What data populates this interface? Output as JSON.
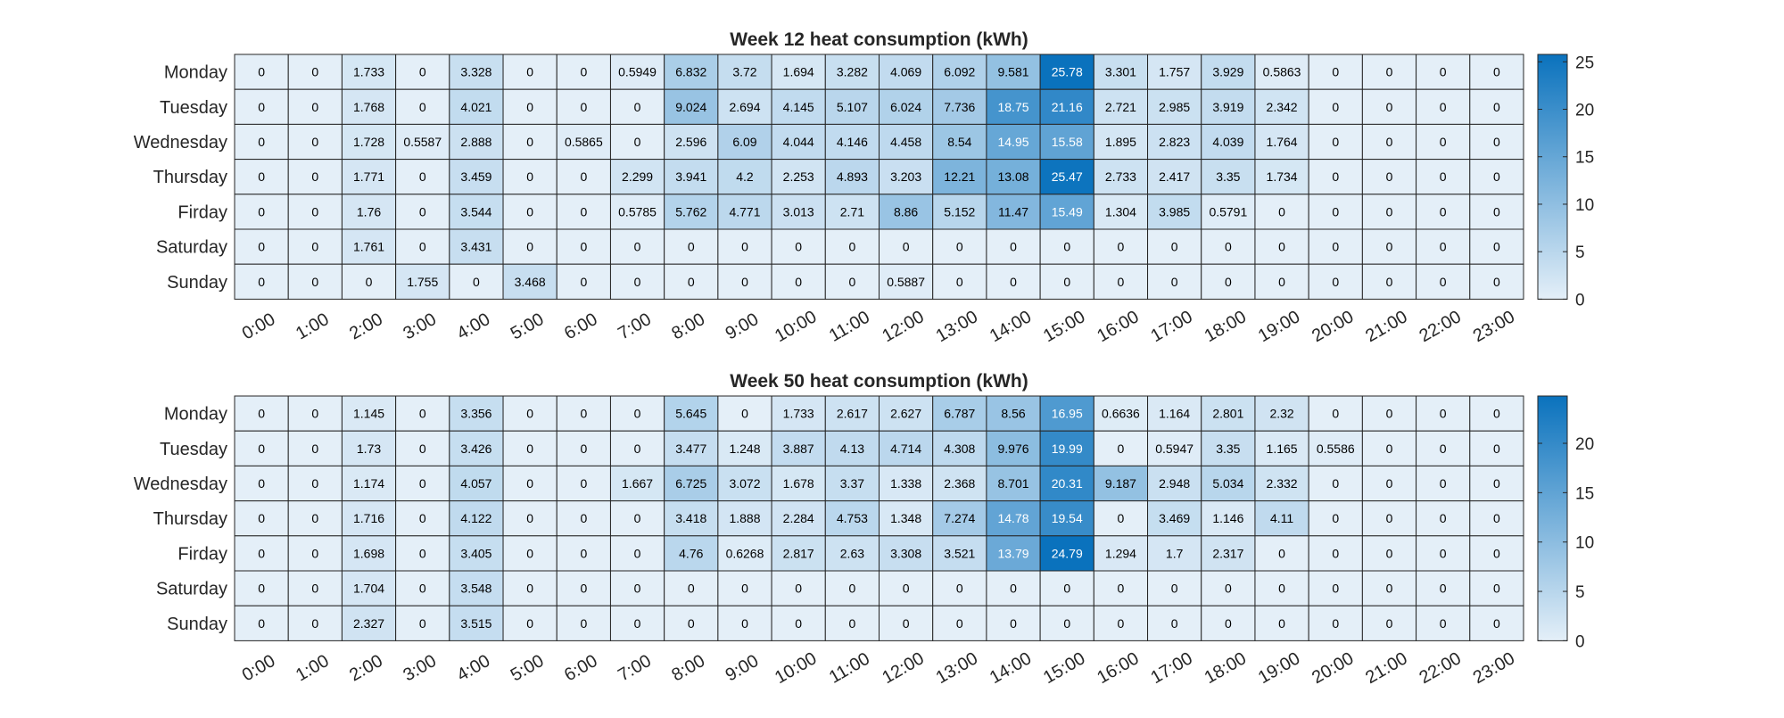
{
  "chart_data": [
    {
      "type": "heatmap",
      "title": "Week 12 heat consumption (kWh)",
      "rows": [
        "Monday",
        "Tuesday",
        "Wednesday",
        "Thursday",
        "Firday",
        "Saturday",
        "Sunday"
      ],
      "columns": [
        "0:00",
        "1:00",
        "2:00",
        "3:00",
        "4:00",
        "5:00",
        "6:00",
        "7:00",
        "8:00",
        "9:00",
        "10:00",
        "11:00",
        "12:00",
        "13:00",
        "14:00",
        "15:00",
        "16:00",
        "17:00",
        "18:00",
        "19:00",
        "20:00",
        "21:00",
        "22:00",
        "23:00"
      ],
      "values": [
        [
          0,
          0,
          1.733,
          0,
          3.328,
          0,
          0,
          0.5949,
          6.832,
          3.72,
          1.694,
          3.282,
          4.069,
          6.092,
          9.581,
          25.78,
          3.301,
          1.757,
          3.929,
          0.5863,
          0,
          0,
          0,
          0
        ],
        [
          0,
          0,
          1.768,
          0,
          4.021,
          0,
          0,
          0,
          9.024,
          2.694,
          4.145,
          5.107,
          6.024,
          7.736,
          18.75,
          21.16,
          2.721,
          2.985,
          3.919,
          2.342,
          0,
          0,
          0,
          0
        ],
        [
          0,
          0,
          1.728,
          0.5587,
          2.888,
          0,
          0.5865,
          0,
          2.596,
          6.09,
          4.044,
          4.146,
          4.458,
          8.54,
          14.95,
          15.58,
          1.895,
          2.823,
          4.039,
          1.764,
          0,
          0,
          0,
          0
        ],
        [
          0,
          0,
          1.771,
          0,
          3.459,
          0,
          0,
          2.299,
          3.941,
          4.2,
          2.253,
          4.893,
          3.203,
          12.21,
          13.08,
          25.47,
          2.733,
          2.417,
          3.35,
          1.734,
          0,
          0,
          0,
          0
        ],
        [
          0,
          0,
          1.76,
          0,
          3.544,
          0,
          0,
          0.5785,
          5.762,
          4.771,
          3.013,
          2.71,
          8.86,
          5.152,
          11.47,
          15.49,
          1.304,
          3.985,
          0.5791,
          0,
          0,
          0,
          0,
          0
        ],
        [
          0,
          0,
          1.761,
          0,
          3.431,
          0,
          0,
          0,
          0,
          0,
          0,
          0,
          0,
          0,
          0,
          0,
          0,
          0,
          0,
          0,
          0,
          0,
          0,
          0
        ],
        [
          0,
          0,
          0,
          1.755,
          0,
          3.468,
          0,
          0,
          0,
          0,
          0,
          0,
          0.5887,
          0,
          0,
          0,
          0,
          0,
          0,
          0,
          0,
          0,
          0,
          0
        ]
      ],
      "labels": [
        [
          "0",
          "0",
          "1.733",
          "0",
          "3.328",
          "0",
          "0",
          "0.5949",
          "6.832",
          "3.72",
          "1.694",
          "3.282",
          "4.069",
          "6.092",
          "9.581",
          "25.78",
          "3.301",
          "1.757",
          "3.929",
          "0.5863",
          "0",
          "0",
          "0",
          "0"
        ],
        [
          "0",
          "0",
          "1.768",
          "0",
          "4.021",
          "0",
          "0",
          "0",
          "9.024",
          "2.694",
          "4.145",
          "5.107",
          "6.024",
          "7.736",
          "18.75",
          "21.16",
          "2.721",
          "2.985",
          "3.919",
          "2.342",
          "0",
          "0",
          "0",
          "0"
        ],
        [
          "0",
          "0",
          "1.728",
          "0.5587",
          "2.888",
          "0",
          "0.5865",
          "0",
          "2.596",
          "6.09",
          "4.044",
          "4.146",
          "4.458",
          "8.54",
          "14.95",
          "15.58",
          "1.895",
          "2.823",
          "4.039",
          "1.764",
          "0",
          "0",
          "0",
          "0"
        ],
        [
          "0",
          "0",
          "1.771",
          "0",
          "3.459",
          "0",
          "0",
          "2.299",
          "3.941",
          "4.2",
          "2.253",
          "4.893",
          "3.203",
          "12.21",
          "13.08",
          "25.47",
          "2.733",
          "2.417",
          "3.35",
          "1.734",
          "0",
          "0",
          "0",
          "0"
        ],
        [
          "0",
          "0",
          "1.76",
          "0",
          "3.544",
          "0",
          "0",
          "0.5785",
          "5.762",
          "4.771",
          "3.013",
          "2.71",
          "8.86",
          "5.152",
          "11.47",
          "15.49",
          "1.304",
          "3.985",
          "0.5791",
          "0",
          "0",
          "0",
          "0",
          "0"
        ],
        [
          "0",
          "0",
          "1.761",
          "0",
          "3.431",
          "0",
          "0",
          "0",
          "0",
          "0",
          "0",
          "0",
          "0",
          "0",
          "0",
          "0",
          "0",
          "0",
          "0",
          "0",
          "0",
          "0",
          "0",
          "0"
        ],
        [
          "0",
          "0",
          "0",
          "1.755",
          "0",
          "3.468",
          "0",
          "0",
          "0",
          "0",
          "0",
          "0",
          "0.5887",
          "0",
          "0",
          "0",
          "0",
          "0",
          "0",
          "0",
          "0",
          "0",
          "0",
          "0"
        ]
      ],
      "colorbar": {
        "range": [
          0,
          25.78
        ],
        "ticks": [
          0,
          5,
          10,
          15,
          20,
          25
        ]
      },
      "colormap": {
        "low": "#e4eff8",
        "high": "#0a72bd"
      }
    },
    {
      "type": "heatmap",
      "title": "Week 50 heat consumption (kWh)",
      "rows": [
        "Monday",
        "Tuesday",
        "Wednesday",
        "Thursday",
        "Firday",
        "Saturday",
        "Sunday"
      ],
      "columns": [
        "0:00",
        "1:00",
        "2:00",
        "3:00",
        "4:00",
        "5:00",
        "6:00",
        "7:00",
        "8:00",
        "9:00",
        "10:00",
        "11:00",
        "12:00",
        "13:00",
        "14:00",
        "15:00",
        "16:00",
        "17:00",
        "18:00",
        "19:00",
        "20:00",
        "21:00",
        "22:00",
        "23:00"
      ],
      "values": [
        [
          0,
          0,
          1.145,
          0,
          3.356,
          0,
          0,
          0,
          5.645,
          0,
          1.733,
          2.617,
          2.627,
          6.787,
          8.56,
          16.95,
          0.6636,
          1.164,
          2.801,
          2.32,
          0,
          0,
          0,
          0
        ],
        [
          0,
          0,
          1.73,
          0,
          3.426,
          0,
          0,
          0,
          3.477,
          1.248,
          3.887,
          4.13,
          4.714,
          4.308,
          9.976,
          19.99,
          0,
          0.5947,
          3.35,
          1.165,
          0.5586,
          0,
          0,
          0
        ],
        [
          0,
          0,
          1.174,
          0,
          4.057,
          0,
          0,
          1.667,
          6.725,
          3.072,
          1.678,
          3.37,
          1.338,
          2.368,
          8.701,
          20.31,
          9.187,
          2.948,
          5.034,
          2.332,
          0,
          0,
          0,
          0
        ],
        [
          0,
          0,
          1.716,
          0,
          4.122,
          0,
          0,
          0,
          3.418,
          1.888,
          2.284,
          4.753,
          1.348,
          7.274,
          14.78,
          19.54,
          0,
          3.469,
          1.146,
          4.11,
          0,
          0,
          0,
          0
        ],
        [
          0,
          0,
          1.698,
          0,
          3.405,
          0,
          0,
          0,
          4.76,
          0.6268,
          2.817,
          2.63,
          3.308,
          3.521,
          13.79,
          24.79,
          1.294,
          1.7,
          2.317,
          0,
          0,
          0,
          0,
          0
        ],
        [
          0,
          0,
          1.704,
          0,
          3.548,
          0,
          0,
          0,
          0,
          0,
          0,
          0,
          0,
          0,
          0,
          0,
          0,
          0,
          0,
          0,
          0,
          0,
          0,
          0
        ],
        [
          0,
          0,
          2.327,
          0,
          3.515,
          0,
          0,
          0,
          0,
          0,
          0,
          0,
          0,
          0,
          0,
          0,
          0,
          0,
          0,
          0,
          0,
          0,
          0,
          0
        ]
      ],
      "labels": [
        [
          "0",
          "0",
          "1.145",
          "0",
          "3.356",
          "0",
          "0",
          "0",
          "5.645",
          "0",
          "1.733",
          "2.617",
          "2.627",
          "6.787",
          "8.56",
          "16.95",
          "0.6636",
          "1.164",
          "2.801",
          "2.32",
          "0",
          "0",
          "0",
          "0"
        ],
        [
          "0",
          "0",
          "1.73",
          "0",
          "3.426",
          "0",
          "0",
          "0",
          "3.477",
          "1.248",
          "3.887",
          "4.13",
          "4.714",
          "4.308",
          "9.976",
          "19.99",
          "0",
          "0.5947",
          "3.35",
          "1.165",
          "0.5586",
          "0",
          "0",
          "0"
        ],
        [
          "0",
          "0",
          "1.174",
          "0",
          "4.057",
          "0",
          "0",
          "1.667",
          "6.725",
          "3.072",
          "1.678",
          "3.37",
          "1.338",
          "2.368",
          "8.701",
          "20.31",
          "9.187",
          "2.948",
          "5.034",
          "2.332",
          "0",
          "0",
          "0",
          "0"
        ],
        [
          "0",
          "0",
          "1.716",
          "0",
          "4.122",
          "0",
          "0",
          "0",
          "3.418",
          "1.888",
          "2.284",
          "4.753",
          "1.348",
          "7.274",
          "14.78",
          "19.54",
          "0",
          "3.469",
          "1.146",
          "4.11",
          "0",
          "0",
          "0",
          "0"
        ],
        [
          "0",
          "0",
          "1.698",
          "0",
          "3.405",
          "0",
          "0",
          "0",
          "4.76",
          "0.6268",
          "2.817",
          "2.63",
          "3.308",
          "3.521",
          "13.79",
          "24.79",
          "1.294",
          "1.7",
          "2.317",
          "0",
          "0",
          "0",
          "0",
          "0"
        ],
        [
          "0",
          "0",
          "1.704",
          "0",
          "3.548",
          "0",
          "0",
          "0",
          "0",
          "0",
          "0",
          "0",
          "0",
          "0",
          "0",
          "0",
          "0",
          "0",
          "0",
          "0",
          "0",
          "0",
          "0",
          "0"
        ],
        [
          "0",
          "0",
          "2.327",
          "0",
          "3.515",
          "0",
          "0",
          "0",
          "0",
          "0",
          "0",
          "0",
          "0",
          "0",
          "0",
          "0",
          "0",
          "0",
          "0",
          "0",
          "0",
          "0",
          "0",
          "0"
        ]
      ],
      "colorbar": {
        "range": [
          0,
          24.79
        ],
        "ticks": [
          0,
          5,
          10,
          15,
          20
        ]
      },
      "colormap": {
        "low": "#e4eff8",
        "high": "#0a72bd"
      }
    }
  ]
}
